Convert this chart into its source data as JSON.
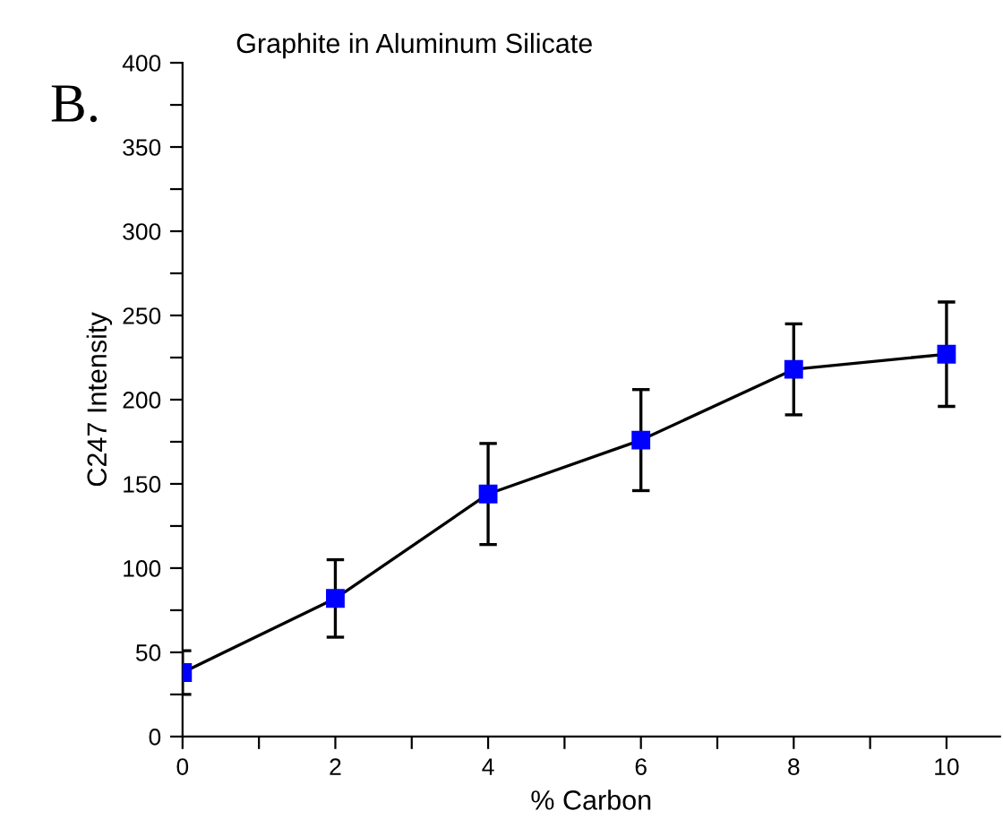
{
  "chart_data": {
    "type": "line",
    "title": "Graphite in Aluminum Silicate",
    "xlabel": "% Carbon",
    "ylabel": "C247 Intensity",
    "annotations": [
      "B."
    ],
    "x": [
      0,
      2,
      4,
      6,
      8,
      10
    ],
    "series": [
      {
        "color": "#0000ff",
        "values": [
          38,
          82,
          144,
          176,
          218,
          227
        ],
        "errors": [
          13,
          23,
          30,
          30,
          27,
          31
        ]
      }
    ],
    "marker": "square",
    "line_style": "solid",
    "grid": false,
    "legend": false,
    "xlim": [
      0,
      10.7
    ],
    "ylim": [
      0,
      400
    ],
    "xticks": [
      0,
      {
        "value": 1,
        "label": null
      },
      2,
      {
        "value": 3,
        "label": null
      },
      4,
      {
        "value": 5,
        "label": null
      },
      6,
      {
        "value": 7,
        "label": null
      },
      8,
      {
        "value": 9,
        "label": null
      },
      10
    ],
    "yticks": [
      0,
      {
        "value": 25,
        "label": null
      },
      50,
      {
        "value": 75,
        "label": null
      },
      100,
      {
        "value": 125,
        "label": null
      },
      150,
      {
        "value": 175,
        "label": null
      },
      200,
      {
        "value": 225,
        "label": null
      },
      250,
      {
        "value": 275,
        "label": null
      },
      300,
      {
        "value": 325,
        "label": null
      },
      350,
      {
        "value": 375,
        "label": null
      },
      400
    ]
  }
}
